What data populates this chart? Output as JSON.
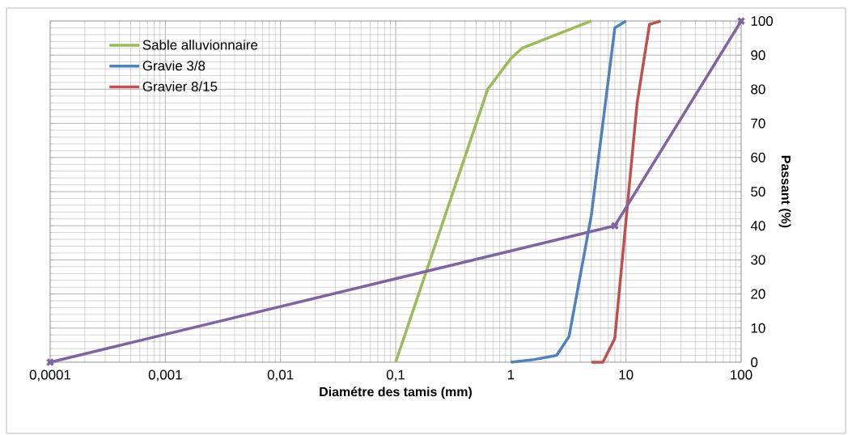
{
  "chart_data": {
    "type": "line",
    "xlabel": "Diamétre des tamis (mm)",
    "ylabel": "Passant (%)",
    "log": "x",
    "grid": true,
    "legend": "top left",
    "marker": "none",
    "xlim": [
      0.0001,
      100
    ],
    "ylim": [
      0,
      100
    ],
    "xticks": [
      {
        "value": 0.0001,
        "label": "0,0001"
      },
      {
        "value": 0.001,
        "label": "0,001"
      },
      {
        "value": 0.01,
        "label": "0,01"
      },
      {
        "value": 0.1,
        "label": "0,1"
      },
      {
        "value": 1,
        "label": "1"
      },
      {
        "value": 10,
        "label": "10"
      },
      {
        "value": 100,
        "label": "100"
      }
    ],
    "yticks": [
      0,
      10,
      20,
      30,
      40,
      50,
      60,
      70,
      80,
      90,
      100
    ],
    "series": [
      {
        "name": "Sable alluvionnaire",
        "color": "#9bbb59",
        "x": [
          0.1,
          0.63,
          1,
          1.25,
          5
        ],
        "values": [
          0,
          80,
          89,
          92,
          100
        ]
      },
      {
        "name": "Gravie 3/8",
        "color": "#4f81bd",
        "x": [
          1,
          1.6,
          2.5,
          3.2,
          5,
          8,
          10
        ],
        "values": [
          0,
          0.8,
          2,
          7.5,
          43,
          98,
          100
        ]
      },
      {
        "name": "Gravier 8/15",
        "color": "#c0504d",
        "x": [
          5,
          6.3,
          8,
          12.5,
          16,
          20
        ],
        "values": [
          0,
          0,
          7,
          76,
          99,
          100
        ]
      },
      {
        "color": "#8064a2",
        "marker": "cross",
        "x": [
          0.0001,
          8,
          100
        ],
        "values": [
          0,
          40,
          100
        ]
      }
    ]
  }
}
